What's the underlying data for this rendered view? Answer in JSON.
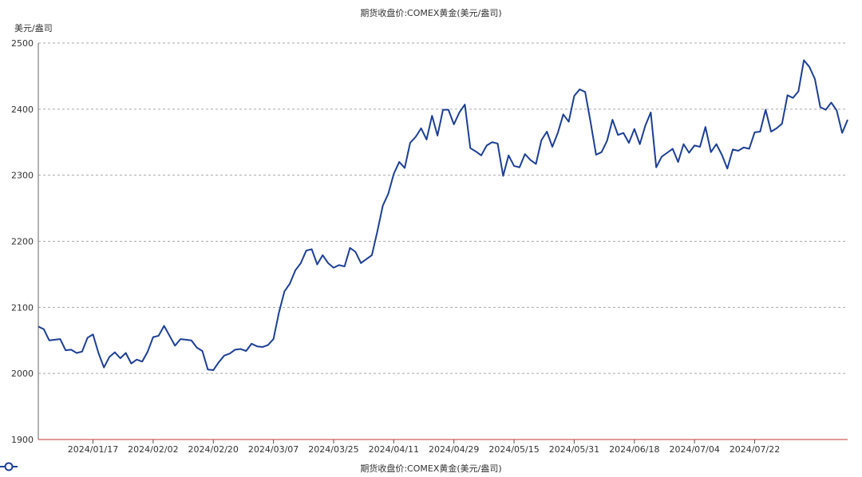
{
  "chart_data": {
    "type": "line",
    "title": "期货收盘价:COMEX黄金(美元/盎司)",
    "ylabel": "美元/盎司",
    "xlabel": "",
    "ylim": [
      1900,
      2500
    ],
    "yticks": [
      1900,
      2000,
      2100,
      2200,
      2300,
      2400,
      2500
    ],
    "grid": true,
    "legend_position": "bottom",
    "line_color": "#1c3f94",
    "axis_color": "#c23531",
    "xticks": [
      {
        "label": "2024/01/17",
        "index": 10
      },
      {
        "label": "2024/02/02",
        "index": 21
      },
      {
        "label": "2024/02/20",
        "index": 32
      },
      {
        "label": "2024/03/07",
        "index": 43
      },
      {
        "label": "2024/03/25",
        "index": 54
      },
      {
        "label": "2024/04/11",
        "index": 65
      },
      {
        "label": "2024/04/29",
        "index": 76
      },
      {
        "label": "2024/05/15",
        "index": 87
      },
      {
        "label": "2024/05/31",
        "index": 98
      },
      {
        "label": "2024/06/18",
        "index": 109
      },
      {
        "label": "2024/07/04",
        "index": 120
      },
      {
        "label": "2024/07/22",
        "index": 131
      }
    ],
    "series": [
      {
        "name": "期货收盘价:COMEX黄金(美元/盎司)",
        "values": [
          2071,
          2067,
          2050,
          2051,
          2052,
          2035,
          2036,
          2031,
          2033,
          2054,
          2059,
          2031,
          2009,
          2025,
          2032,
          2023,
          2031,
          2015,
          2021,
          2018,
          2033,
          2055,
          2057,
          2072,
          2057,
          2042,
          2052,
          2051,
          2050,
          2039,
          2034,
          2006,
          2005,
          2017,
          2027,
          2030,
          2036,
          2037,
          2034,
          2045,
          2041,
          2040,
          2043,
          2052,
          2092,
          2124,
          2136,
          2156,
          2167,
          2186,
          2188,
          2165,
          2179,
          2167,
          2160,
          2164,
          2162,
          2190,
          2184,
          2167,
          2173,
          2179,
          2215,
          2254,
          2272,
          2302,
          2320,
          2311,
          2349,
          2358,
          2371,
          2354,
          2390,
          2360,
          2399,
          2399,
          2377,
          2395,
          2407,
          2341,
          2336,
          2330,
          2345,
          2350,
          2348,
          2299,
          2330,
          2314,
          2312,
          2332,
          2323,
          2317,
          2353,
          2366,
          2343,
          2364,
          2392,
          2381,
          2420,
          2430,
          2426,
          2380,
          2331,
          2335,
          2352,
          2384,
          2361,
          2364,
          2349,
          2370,
          2347,
          2375,
          2395,
          2312,
          2328,
          2334,
          2340,
          2320,
          2347,
          2334,
          2345,
          2343,
          2373,
          2335,
          2347,
          2331,
          2310,
          2339,
          2337,
          2342,
          2340,
          2365,
          2366,
          2399,
          2366,
          2371,
          2378,
          2421,
          2417,
          2427,
          2474,
          2464,
          2446,
          2403,
          2399,
          2410,
          2398,
          2364,
          2384
        ]
      }
    ]
  }
}
